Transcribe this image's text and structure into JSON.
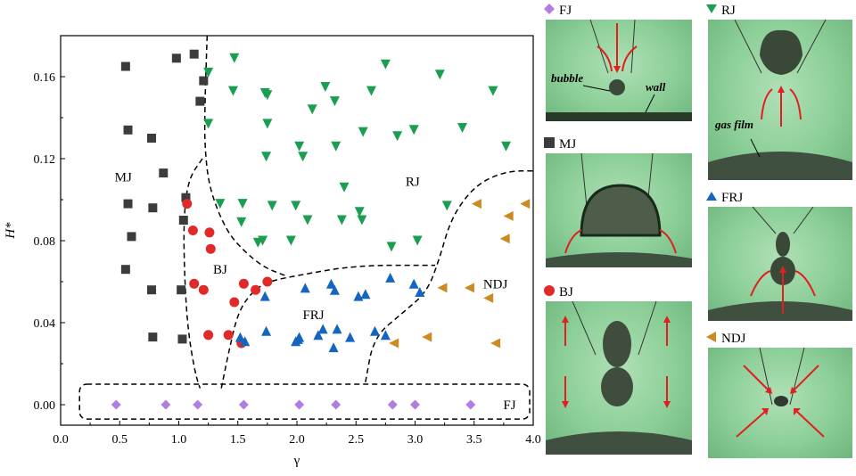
{
  "chart_data": {
    "type": "scatter",
    "title": "",
    "xlabel": "γ",
    "ylabel": "H*",
    "xlim": [
      0.0,
      4.0
    ],
    "ylim": [
      -0.01,
      0.18
    ],
    "xticks": [
      0.0,
      0.5,
      1.0,
      1.5,
      2.0,
      2.5,
      3.0,
      3.5,
      4.0
    ],
    "yticks": [
      0.0,
      0.04,
      0.08,
      0.12,
      0.16
    ],
    "xtick_labels": [
      "0.0",
      "0.5",
      "1.0",
      "1.5",
      "2.0",
      "2.5",
      "3.0",
      "3.5",
      "4.0"
    ],
    "ytick_labels": [
      "0.00",
      "0.04",
      "0.08",
      "0.12",
      "0.16"
    ],
    "regions": [
      {
        "label": "MJ",
        "x": 0.53,
        "y": 0.111
      },
      {
        "label": "RJ",
        "x": 2.98,
        "y": 0.109
      },
      {
        "label": "BJ",
        "x": 1.35,
        "y": 0.066
      },
      {
        "label": "FRJ",
        "x": 2.14,
        "y": 0.044
      },
      {
        "label": "NDJ",
        "x": 3.68,
        "y": 0.059
      },
      {
        "label": "FJ",
        "x": 3.8,
        "y": 0.0
      }
    ],
    "series": [
      {
        "name": "MJ",
        "marker": "square",
        "color": "#3c3c3c",
        "x": [
          0.55,
          0.57,
          0.57,
          0.6,
          0.55,
          0.77,
          0.78,
          0.87,
          0.77,
          0.78,
          0.98,
          1.04,
          1.02,
          1.03,
          1.06,
          1.13,
          1.18,
          1.21
        ],
        "y": [
          0.165,
          0.134,
          0.098,
          0.082,
          0.066,
          0.13,
          0.096,
          0.113,
          0.056,
          0.033,
          0.169,
          0.09,
          0.056,
          0.032,
          0.101,
          0.171,
          0.148,
          0.158
        ]
      },
      {
        "name": "RJ",
        "marker": "triangle-down",
        "color": "#1a9e50",
        "x": [
          1.25,
          1.47,
          1.46,
          1.25,
          1.35,
          1.54,
          1.53,
          1.73,
          1.75,
          1.75,
          1.74,
          1.79,
          1.71,
          1.67,
          1.95,
          2.02,
          2.05,
          2.13,
          2.24,
          2.32,
          2.33,
          2.4,
          2.56,
          2.63,
          2.75,
          2.85,
          2.99,
          3.21,
          3.4,
          3.66,
          3.77,
          1.99,
          2.09,
          2.38,
          2.53,
          2.55,
          2.8,
          3.02,
          3.27
        ],
        "y": [
          0.162,
          0.169,
          0.153,
          0.137,
          0.098,
          0.098,
          0.089,
          0.152,
          0.151,
          0.137,
          0.121,
          0.097,
          0.08,
          0.079,
          0.08,
          0.126,
          0.121,
          0.144,
          0.155,
          0.148,
          0.126,
          0.106,
          0.133,
          0.153,
          0.166,
          0.131,
          0.134,
          0.161,
          0.135,
          0.153,
          0.126,
          0.097,
          0.09,
          0.09,
          0.094,
          0.09,
          0.077,
          0.08,
          0.097
        ]
      },
      {
        "name": "BJ",
        "marker": "circle",
        "color": "#e02a2a",
        "x": [
          1.07,
          1.12,
          1.26,
          1.27,
          1.13,
          1.21,
          1.25,
          1.42,
          1.47,
          1.53,
          1.55,
          1.65,
          1.75
        ],
        "y": [
          0.098,
          0.085,
          0.084,
          0.076,
          0.059,
          0.056,
          0.034,
          0.034,
          0.05,
          0.03,
          0.059,
          0.056,
          0.06
        ]
      },
      {
        "name": "FRJ",
        "marker": "triangle-up",
        "color": "#1565c0",
        "x": [
          1.52,
          1.56,
          1.73,
          1.74,
          1.99,
          2.01,
          2.07,
          2.18,
          2.22,
          2.29,
          2.34,
          2.31,
          2.32,
          2.45,
          2.52,
          2.58,
          2.66,
          2.75,
          2.79,
          2.99,
          3.04,
          2.02
        ],
        "y": [
          0.033,
          0.031,
          0.053,
          0.036,
          0.031,
          0.032,
          0.057,
          0.034,
          0.037,
          0.059,
          0.037,
          0.028,
          0.056,
          0.033,
          0.053,
          0.054,
          0.036,
          0.034,
          0.062,
          0.059,
          0.055,
          0.033
        ]
      },
      {
        "name": "NDJ",
        "marker": "triangle-left",
        "color": "#cc8a20",
        "x": [
          3.52,
          3.79,
          3.93,
          3.46,
          3.23,
          3.76,
          3.62,
          3.1,
          2.82,
          3.68
        ],
        "y": [
          0.098,
          0.092,
          0.098,
          0.057,
          0.057,
          0.081,
          0.052,
          0.033,
          0.03,
          0.03
        ]
      },
      {
        "name": "FJ",
        "marker": "diamond",
        "color": "#b07ee0",
        "x": [
          0.47,
          0.89,
          1.16,
          1.55,
          2.02,
          2.33,
          2.81,
          3.0,
          3.47
        ],
        "y": [
          0.0,
          0.0,
          0.0,
          0.0,
          0.0,
          0.0,
          0.0,
          0.0,
          0.0
        ]
      }
    ],
    "boundaries": [
      {
        "name": "MJ-RJ",
        "points": [
          [
            1.24,
            0.18
          ],
          [
            1.22,
            0.145
          ],
          [
            1.22,
            0.125
          ],
          [
            1.26,
            0.105
          ],
          [
            1.4,
            0.085
          ],
          [
            1.55,
            0.075
          ],
          [
            1.72,
            0.067
          ],
          [
            1.9,
            0.063
          ]
        ]
      },
      {
        "name": "MJ-BJ",
        "points": [
          [
            1.2,
            0.12
          ],
          [
            1.08,
            0.11
          ],
          [
            1.04,
            0.09
          ],
          [
            1.05,
            0.06
          ],
          [
            1.08,
            0.035
          ],
          [
            1.14,
            0.015
          ],
          [
            1.18,
            0.008
          ]
        ]
      },
      {
        "name": "BJ-FRJ",
        "points": [
          [
            1.36,
            0.008
          ],
          [
            1.42,
            0.025
          ],
          [
            1.5,
            0.045
          ],
          [
            1.62,
            0.055
          ],
          [
            1.75,
            0.06
          ],
          [
            2.0,
            0.063
          ],
          [
            2.5,
            0.068
          ],
          [
            3.17,
            0.068
          ]
        ]
      },
      {
        "name": "FRJ-NDJ",
        "points": [
          [
            2.58,
            0.011
          ],
          [
            2.65,
            0.033
          ],
          [
            2.9,
            0.045
          ],
          [
            3.1,
            0.055
          ],
          [
            3.2,
            0.07
          ],
          [
            3.3,
            0.09
          ],
          [
            3.45,
            0.103
          ],
          [
            3.6,
            0.11
          ],
          [
            3.8,
            0.114
          ],
          [
            4.0,
            0.114
          ]
        ]
      },
      {
        "name": "FJ-box",
        "points": [
          [
            0.16,
            0.01
          ],
          [
            3.97,
            0.01
          ],
          [
            3.97,
            -0.007
          ],
          [
            0.16,
            -0.007
          ]
        ]
      }
    ]
  },
  "panels": [
    {
      "label": "FJ",
      "marker": "diamond",
      "color": "#b07ee0",
      "annotations": [
        "bubble",
        "wall"
      ]
    },
    {
      "label": "MJ",
      "marker": "square",
      "color": "#3c3c3c",
      "annotations": []
    },
    {
      "label": "BJ",
      "marker": "circle",
      "color": "#e02a2a",
      "annotations": []
    },
    {
      "label": "RJ",
      "marker": "triangle-down",
      "color": "#1a9e50",
      "annotations": [
        "gas film"
      ]
    },
    {
      "label": "FRJ",
      "marker": "triangle-up",
      "color": "#1565c0",
      "annotations": []
    },
    {
      "label": "NDJ",
      "marker": "triangle-left",
      "color": "#cc8a20",
      "annotations": []
    }
  ]
}
